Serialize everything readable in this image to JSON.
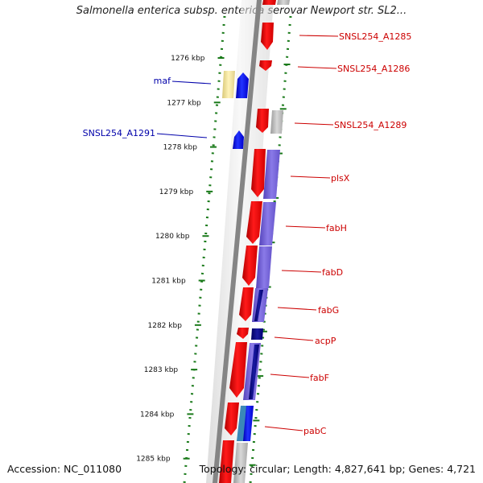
{
  "title": "Salmonella enterica subsp. enterica serovar Newport str. SL2...",
  "footer": {
    "accession": "Accession: NC_011080",
    "summary": "Topology: circular; Length: 4,827,641 bp; Genes: 4,721"
  },
  "scale_labels": [
    "1276 kbp",
    "1277 kbp",
    "1278 kbp",
    "1279 kbp",
    "1280 kbp",
    "1281 kbp",
    "1282 kbp",
    "1283 kbp",
    "1284 kbp",
    "1285 kbp"
  ],
  "genes_left": [
    {
      "label": "maf",
      "color": "#0000aa"
    },
    {
      "label": "SNSL254_A1291",
      "color": "#0000aa"
    }
  ],
  "genes_right": [
    {
      "label": "SNSL254_A1285",
      "color": "#cc0000"
    },
    {
      "label": "SNSL254_A1286",
      "color": "#cc0000"
    },
    {
      "label": "SNSL254_A1289",
      "color": "#cc0000"
    },
    {
      "label": "plsX",
      "color": "#cc0000"
    },
    {
      "label": "fabH",
      "color": "#cc0000"
    },
    {
      "label": "fabD",
      "color": "#cc0000"
    },
    {
      "label": "fabG",
      "color": "#cc0000"
    },
    {
      "label": "acpP",
      "color": "#cc0000"
    },
    {
      "label": "fabF",
      "color": "#cc0000"
    },
    {
      "label": "pabC",
      "color": "#cc0000"
    }
  ],
  "colors": {
    "cds_red": "#ff0000",
    "cds_blue": "#0000ff",
    "gray_backbone": "#888888",
    "tick_green": "#1a7a1a",
    "cog_purple": "#7766dd",
    "cog_navy": "#000080",
    "cog_yellow": "#f5e6a0"
  }
}
